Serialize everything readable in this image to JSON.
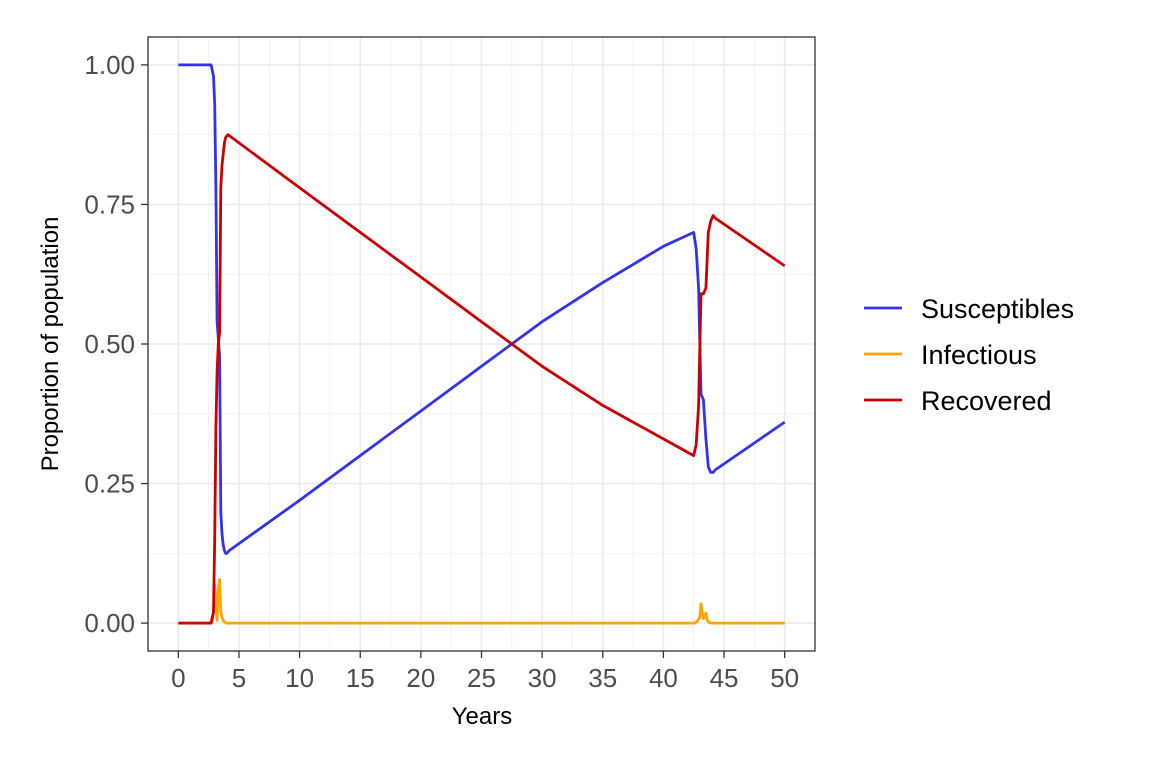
{
  "chart_data": {
    "type": "line",
    "title": "",
    "xlabel": "Years",
    "ylabel": "Proportion of population",
    "xlim": [
      -2.5,
      52.5
    ],
    "ylim": [
      -0.05,
      1.05
    ],
    "x_ticks": [
      "0",
      "5",
      "10",
      "15",
      "20",
      "25",
      "30",
      "35",
      "40",
      "45",
      "50"
    ],
    "y_ticks": [
      "0.00",
      "0.25",
      "0.50",
      "0.75",
      "1.00"
    ],
    "grid": true,
    "legend_position": "right",
    "series": [
      {
        "name": "Susceptibles",
        "color": "#3333EE",
        "x": [
          0,
          2.7,
          2.9,
          3.0,
          3.1,
          3.2,
          3.3,
          3.4,
          3.5,
          3.6,
          3.7,
          3.8,
          3.9,
          4.0,
          4.2,
          10,
          15,
          20,
          25,
          30,
          35,
          40,
          42.5,
          42.7,
          42.9,
          43.1,
          43.3,
          43.5,
          43.7,
          43.9,
          44.1,
          44.3,
          50
        ],
        "y": [
          1.0,
          1.0,
          0.98,
          0.93,
          0.78,
          0.54,
          0.51,
          0.48,
          0.2,
          0.16,
          0.14,
          0.13,
          0.125,
          0.125,
          0.13,
          0.22,
          0.3,
          0.38,
          0.46,
          0.54,
          0.61,
          0.675,
          0.7,
          0.67,
          0.6,
          0.41,
          0.4,
          0.33,
          0.28,
          0.27,
          0.27,
          0.275,
          0.36
        ]
      },
      {
        "name": "Infectious",
        "color": "#FFA500",
        "x": [
          0,
          2.7,
          2.8,
          2.9,
          3.0,
          3.1,
          3.2,
          3.3,
          3.4,
          3.5,
          3.6,
          3.7,
          3.8,
          4.0,
          42.6,
          42.8,
          43.0,
          43.1,
          43.2,
          43.3,
          43.4,
          43.5,
          43.6,
          43.7,
          43.8,
          44.0,
          50
        ],
        "y": [
          0,
          0,
          0.005,
          0.02,
          0.07,
          0.03,
          0.005,
          0.06,
          0.078,
          0.02,
          0.01,
          0.005,
          0.002,
          0.0,
          0.0,
          0.004,
          0.01,
          0.035,
          0.02,
          0.008,
          0.012,
          0.018,
          0.006,
          0.002,
          0.001,
          0.0,
          0.0
        ]
      },
      {
        "name": "Recovered",
        "color": "#CC0000",
        "x": [
          0,
          2.7,
          2.9,
          3.0,
          3.1,
          3.2,
          3.3,
          3.4,
          3.5,
          3.6,
          3.7,
          3.8,
          3.9,
          4.1,
          10,
          15,
          20,
          25,
          30,
          35,
          40,
          42.5,
          42.7,
          42.9,
          43.1,
          43.3,
          43.5,
          43.7,
          43.9,
          44.1,
          44.3,
          50
        ],
        "y": [
          0,
          0,
          0.02,
          0.15,
          0.35,
          0.45,
          0.5,
          0.52,
          0.78,
          0.82,
          0.84,
          0.86,
          0.87,
          0.875,
          0.78,
          0.7,
          0.62,
          0.54,
          0.46,
          0.39,
          0.33,
          0.3,
          0.32,
          0.39,
          0.59,
          0.59,
          0.6,
          0.7,
          0.72,
          0.73,
          0.725,
          0.64
        ]
      }
    ]
  }
}
